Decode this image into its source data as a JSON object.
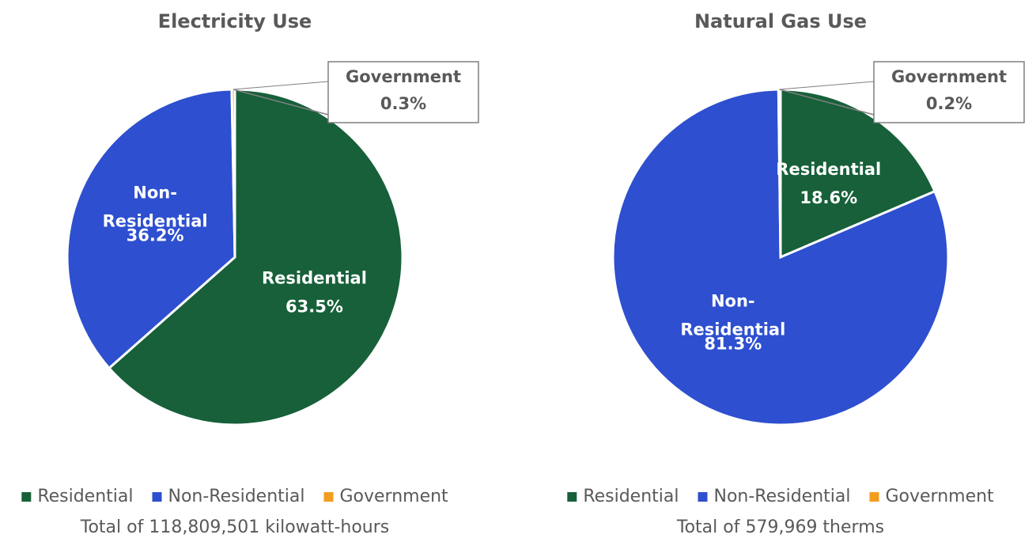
{
  "chart_data": [
    {
      "type": "pie",
      "title": "Electricity Use",
      "categories": [
        "Residential",
        "Non-Residential",
        "Government"
      ],
      "values": [
        63.5,
        36.2,
        0.3
      ],
      "value_labels": [
        "63.5%",
        "36.2%",
        "0.3%"
      ],
      "colors": [
        "#17603a",
        "#2e4fcf",
        "#f39c1f"
      ],
      "caption": "Total of 118,809,501 kilowatt-hours"
    },
    {
      "type": "pie",
      "title": "Natural Gas Use",
      "categories": [
        "Residential",
        "Non-Residential",
        "Government"
      ],
      "values": [
        18.6,
        81.3,
        0.2
      ],
      "value_labels": [
        "18.6%",
        "81.3%",
        "0.2%"
      ],
      "colors": [
        "#17603a",
        "#2e4fcf",
        "#f39c1f"
      ],
      "caption": "Total of 579,969 therms"
    }
  ]
}
